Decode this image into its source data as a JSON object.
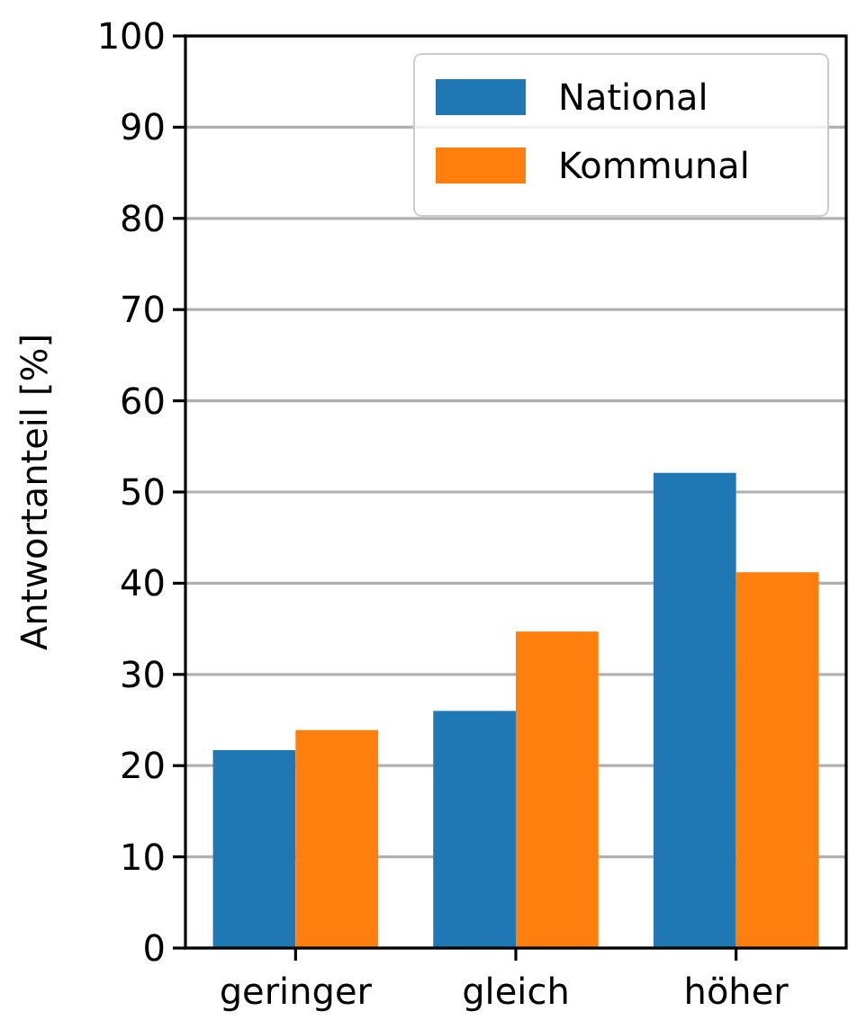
{
  "chart_data": {
    "type": "bar",
    "ylabel": "Antwortanteil [%]",
    "categories": [
      "geringer",
      "gleich",
      "höher"
    ],
    "series": [
      {
        "name": "National",
        "color": "#1f77b4",
        "values": [
          21.7,
          26.0,
          52.1
        ]
      },
      {
        "name": "Kommunal",
        "color": "#ff7f0e",
        "values": [
          23.9,
          34.7,
          41.2
        ]
      }
    ],
    "ylim": [
      0,
      100
    ],
    "yticks": [
      0,
      10,
      20,
      30,
      40,
      50,
      60,
      70,
      80,
      90,
      100
    ],
    "grid": "y",
    "legend": "top right"
  }
}
